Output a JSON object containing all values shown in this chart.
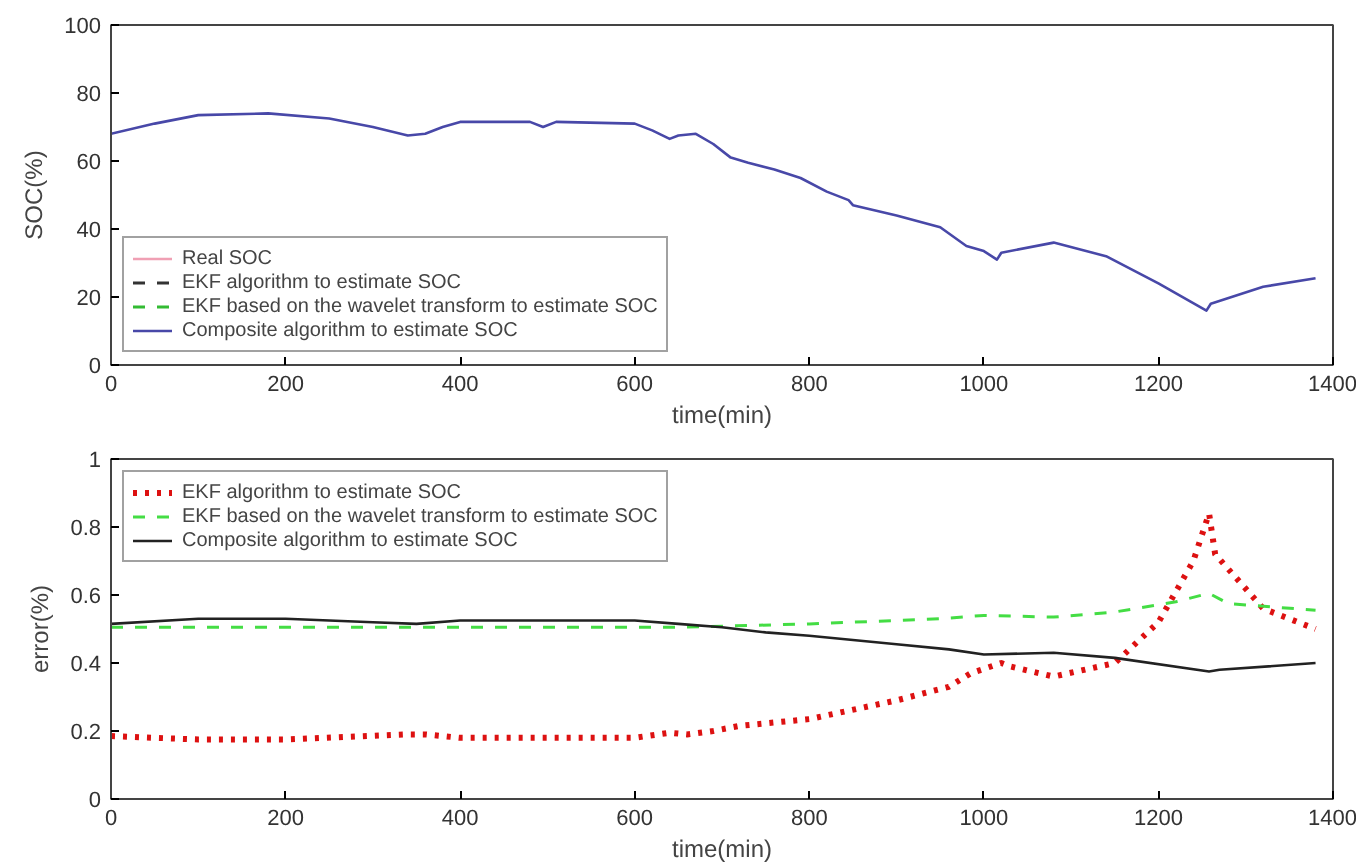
{
  "chart_data": [
    {
      "type": "line",
      "xlabel": "time(min)",
      "ylabel": "SOC(%)",
      "xlim": [
        0,
        1400
      ],
      "ylim": [
        0,
        100
      ],
      "xticks": [
        0,
        200,
        400,
        600,
        800,
        1000,
        1200,
        1400
      ],
      "yticks": [
        0,
        20,
        40,
        60,
        80,
        100
      ],
      "grid": false,
      "legend": "bottom left",
      "x": [
        0,
        50,
        100,
        180,
        250,
        300,
        340,
        360,
        380,
        400,
        480,
        495,
        510,
        600,
        620,
        640,
        650,
        670,
        690,
        710,
        730,
        760,
        790,
        820,
        845,
        850,
        900,
        950,
        980,
        1000,
        1015,
        1020,
        1080,
        1140,
        1200,
        1255,
        1260,
        1320,
        1380
      ],
      "series": [
        {
          "name": "Real SOC",
          "color": "#f0a0b4",
          "line_style": "solid",
          "values": [
            null,
            null,
            null,
            null,
            null,
            null,
            null,
            null,
            null,
            null,
            null,
            null,
            null,
            null,
            null,
            null,
            null,
            null,
            null,
            null,
            null,
            null,
            null,
            null,
            null,
            null,
            null,
            null,
            null,
            null,
            null,
            null,
            null,
            null,
            null,
            null,
            null,
            null,
            null
          ]
        },
        {
          "name": "EKF algorithm to estimate SOC",
          "color": "#333333",
          "line_style": "dashed",
          "values": [
            null,
            null,
            null,
            null,
            null,
            null,
            null,
            null,
            null,
            null,
            null,
            null,
            null,
            null,
            null,
            null,
            null,
            null,
            null,
            null,
            null,
            null,
            null,
            null,
            null,
            null,
            null,
            null,
            null,
            null,
            null,
            null,
            null,
            null,
            null,
            null,
            null,
            null,
            null
          ]
        },
        {
          "name": "EKF based on the wavelet transform to estimate SOC",
          "color": "#33bb33",
          "line_style": "dashed",
          "values": [
            null,
            null,
            null,
            null,
            null,
            null,
            null,
            null,
            null,
            null,
            null,
            null,
            null,
            null,
            null,
            null,
            null,
            null,
            null,
            null,
            null,
            null,
            null,
            null,
            null,
            null,
            null,
            null,
            null,
            null,
            null,
            null,
            null,
            null,
            null,
            null,
            null,
            null,
            null
          ]
        },
        {
          "name": "Composite algorithm to estimate SOC",
          "color": "#4848a8",
          "line_style": "solid",
          "values": [
            68,
            71,
            73.5,
            74,
            72.5,
            70,
            67.5,
            68,
            70,
            71.5,
            71.5,
            70,
            71.5,
            71,
            69,
            66.5,
            67.5,
            68,
            65,
            61,
            59.5,
            57.5,
            55,
            51,
            48.5,
            47,
            44,
            40.5,
            35,
            33.5,
            31,
            33,
            36,
            32,
            24,
            16,
            18,
            23,
            25.5
          ]
        }
      ]
    },
    {
      "type": "line",
      "xlabel": "time(min)",
      "ylabel": "error(%)",
      "xlim": [
        0,
        1400
      ],
      "ylim": [
        0,
        1
      ],
      "xticks": [
        0,
        200,
        400,
        600,
        800,
        1000,
        1200,
        1400
      ],
      "yticks": [
        0,
        0.2,
        0.4,
        0.6,
        0.8,
        1
      ],
      "grid": false,
      "legend": "top left",
      "series": [
        {
          "name": "EKF algorithm to estimate SOC",
          "color": "#dd1111",
          "line_style": "dotted",
          "x": [
            0,
            100,
            200,
            340,
            360,
            400,
            600,
            640,
            660,
            690,
            720,
            800,
            900,
            960,
            985,
            1020,
            1030,
            1080,
            1150,
            1200,
            1240,
            1258,
            1265,
            1320,
            1380
          ],
          "values": [
            0.185,
            0.175,
            0.175,
            0.19,
            0.19,
            0.18,
            0.18,
            0.195,
            0.19,
            0.2,
            0.215,
            0.235,
            0.29,
            0.33,
            0.37,
            0.4,
            0.39,
            0.36,
            0.4,
            0.52,
            0.7,
            0.84,
            0.72,
            0.56,
            0.5
          ]
        },
        {
          "name": "EKF based on the wavelet transform to estimate SOC",
          "color": "#44dd44",
          "line_style": "dashed",
          "x": [
            0,
            650,
            800,
            950,
            1000,
            1080,
            1150,
            1220,
            1258,
            1280,
            1380
          ],
          "values": [
            0.505,
            0.505,
            0.515,
            0.53,
            0.54,
            0.535,
            0.55,
            0.58,
            0.605,
            0.575,
            0.555
          ]
        },
        {
          "name": "Composite algorithm to estimate SOC",
          "color": "#222222",
          "line_style": "solid",
          "x": [
            0,
            100,
            200,
            300,
            350,
            400,
            500,
            600,
            650,
            700,
            750,
            800,
            900,
            960,
            1000,
            1080,
            1150,
            1258,
            1270,
            1380
          ],
          "values": [
            0.515,
            0.53,
            0.53,
            0.52,
            0.515,
            0.525,
            0.525,
            0.525,
            0.515,
            0.505,
            0.49,
            0.48,
            0.455,
            0.44,
            0.425,
            0.43,
            0.415,
            0.375,
            0.38,
            0.4
          ]
        }
      ]
    }
  ]
}
